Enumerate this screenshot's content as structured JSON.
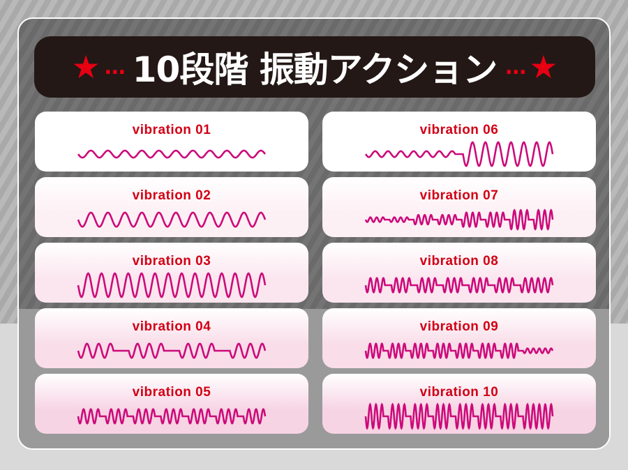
{
  "title": {
    "text": "10段階 振動アクション",
    "dots": "…",
    "star_icon": "star-icon",
    "star_color": "#e60012"
  },
  "colors": {
    "label": "#d10014",
    "wave": "#cc0a7a"
  },
  "vibrations": [
    {
      "label": "vibration 01",
      "pattern": [
        {
          "a": 0.3,
          "n": 11
        }
      ]
    },
    {
      "label": "vibration 02",
      "pattern": [
        {
          "a": 0.6,
          "n": 11
        }
      ]
    },
    {
      "label": "vibration 03",
      "pattern": [
        {
          "a": 1,
          "n": 14
        }
      ]
    },
    {
      "label": "vibration 04",
      "pattern": [
        {
          "a": 0.6,
          "n": 3
        },
        {
          "gap": 1.3
        },
        {
          "a": 0.6,
          "n": 3
        },
        {
          "gap": 1.3
        },
        {
          "a": 0.6,
          "n": 3
        },
        {
          "gap": 1.3
        },
        {
          "a": 0.6,
          "n": 3
        }
      ]
    },
    {
      "label": "vibration 05",
      "pattern": [
        {
          "a": 0.6,
          "n": 3
        },
        {
          "gap": 0.8
        },
        {
          "a": 0.6,
          "n": 3
        },
        {
          "gap": 0.8
        },
        {
          "a": 0.6,
          "n": 3
        },
        {
          "gap": 0.8
        },
        {
          "a": 0.6,
          "n": 3
        },
        {
          "gap": 0.8
        },
        {
          "a": 0.6,
          "n": 3
        },
        {
          "gap": 0.8
        },
        {
          "a": 0.6,
          "n": 3
        },
        {
          "gap": 0.8
        },
        {
          "a": 0.6,
          "n": 3
        }
      ]
    },
    {
      "label": "vibration 06",
      "pattern": [
        {
          "a": 0.25,
          "n": 7
        },
        {
          "gap": 0.6
        },
        {
          "a": 1,
          "n": 7
        }
      ]
    },
    {
      "label": "vibration 07",
      "pattern": [
        {
          "a": 0.2,
          "n": 3
        },
        {
          "gap": 0.8
        },
        {
          "a": 0.2,
          "n": 3
        },
        {
          "gap": 0.8
        },
        {
          "a": 0.4,
          "n": 3
        },
        {
          "gap": 0.8
        },
        {
          "a": 0.4,
          "n": 3
        },
        {
          "gap": 0.8
        },
        {
          "a": 0.6,
          "n": 3
        },
        {
          "gap": 0.8
        },
        {
          "a": 0.6,
          "n": 3
        },
        {
          "gap": 0.8
        },
        {
          "a": 0.8,
          "n": 3
        },
        {
          "gap": 0.8
        },
        {
          "a": 0.8,
          "n": 3
        }
      ]
    },
    {
      "label": "vibration 08",
      "pattern": [
        {
          "a": 0.6,
          "n": 3
        },
        {
          "gap": 1
        },
        {
          "a": 0.6,
          "n": 3
        },
        {
          "gap": 1
        },
        {
          "a": 0.6,
          "n": 3
        },
        {
          "gap": 1
        },
        {
          "a": 0.6,
          "n": 3
        },
        {
          "gap": 1
        },
        {
          "a": 0.6,
          "n": 3
        },
        {
          "gap": 1
        },
        {
          "a": 0.6,
          "n": 3
        },
        {
          "gap": 1
        },
        {
          "a": 0.6,
          "n": 5
        }
      ]
    },
    {
      "label": "vibration 09",
      "pattern": [
        {
          "a": 0.6,
          "n": 3
        },
        {
          "gap": 0.8
        },
        {
          "a": 0.6,
          "n": 3
        },
        {
          "gap": 0.8
        },
        {
          "a": 0.6,
          "n": 3
        },
        {
          "gap": 0.8
        },
        {
          "a": 0.6,
          "n": 3
        },
        {
          "gap": 0.8
        },
        {
          "a": 0.6,
          "n": 3
        },
        {
          "gap": 0.8
        },
        {
          "a": 0.6,
          "n": 3
        },
        {
          "gap": 0.8
        },
        {
          "a": 0.6,
          "n": 3
        },
        {
          "gap": 0.8
        },
        {
          "a": 0.2,
          "n": 5
        }
      ]
    },
    {
      "label": "vibration 10",
      "pattern": [
        {
          "a": 1,
          "n": 3
        },
        {
          "gap": 0.8
        },
        {
          "a": 1,
          "n": 3
        },
        {
          "gap": 0.8
        },
        {
          "a": 1,
          "n": 3
        },
        {
          "gap": 0.8
        },
        {
          "a": 1,
          "n": 3
        },
        {
          "gap": 0.8
        },
        {
          "a": 1,
          "n": 3
        },
        {
          "gap": 0.8
        },
        {
          "a": 1,
          "n": 3
        },
        {
          "gap": 0.8
        },
        {
          "a": 1,
          "n": 3
        },
        {
          "gap": 0.8
        },
        {
          "a": 1,
          "n": 5
        }
      ]
    }
  ]
}
